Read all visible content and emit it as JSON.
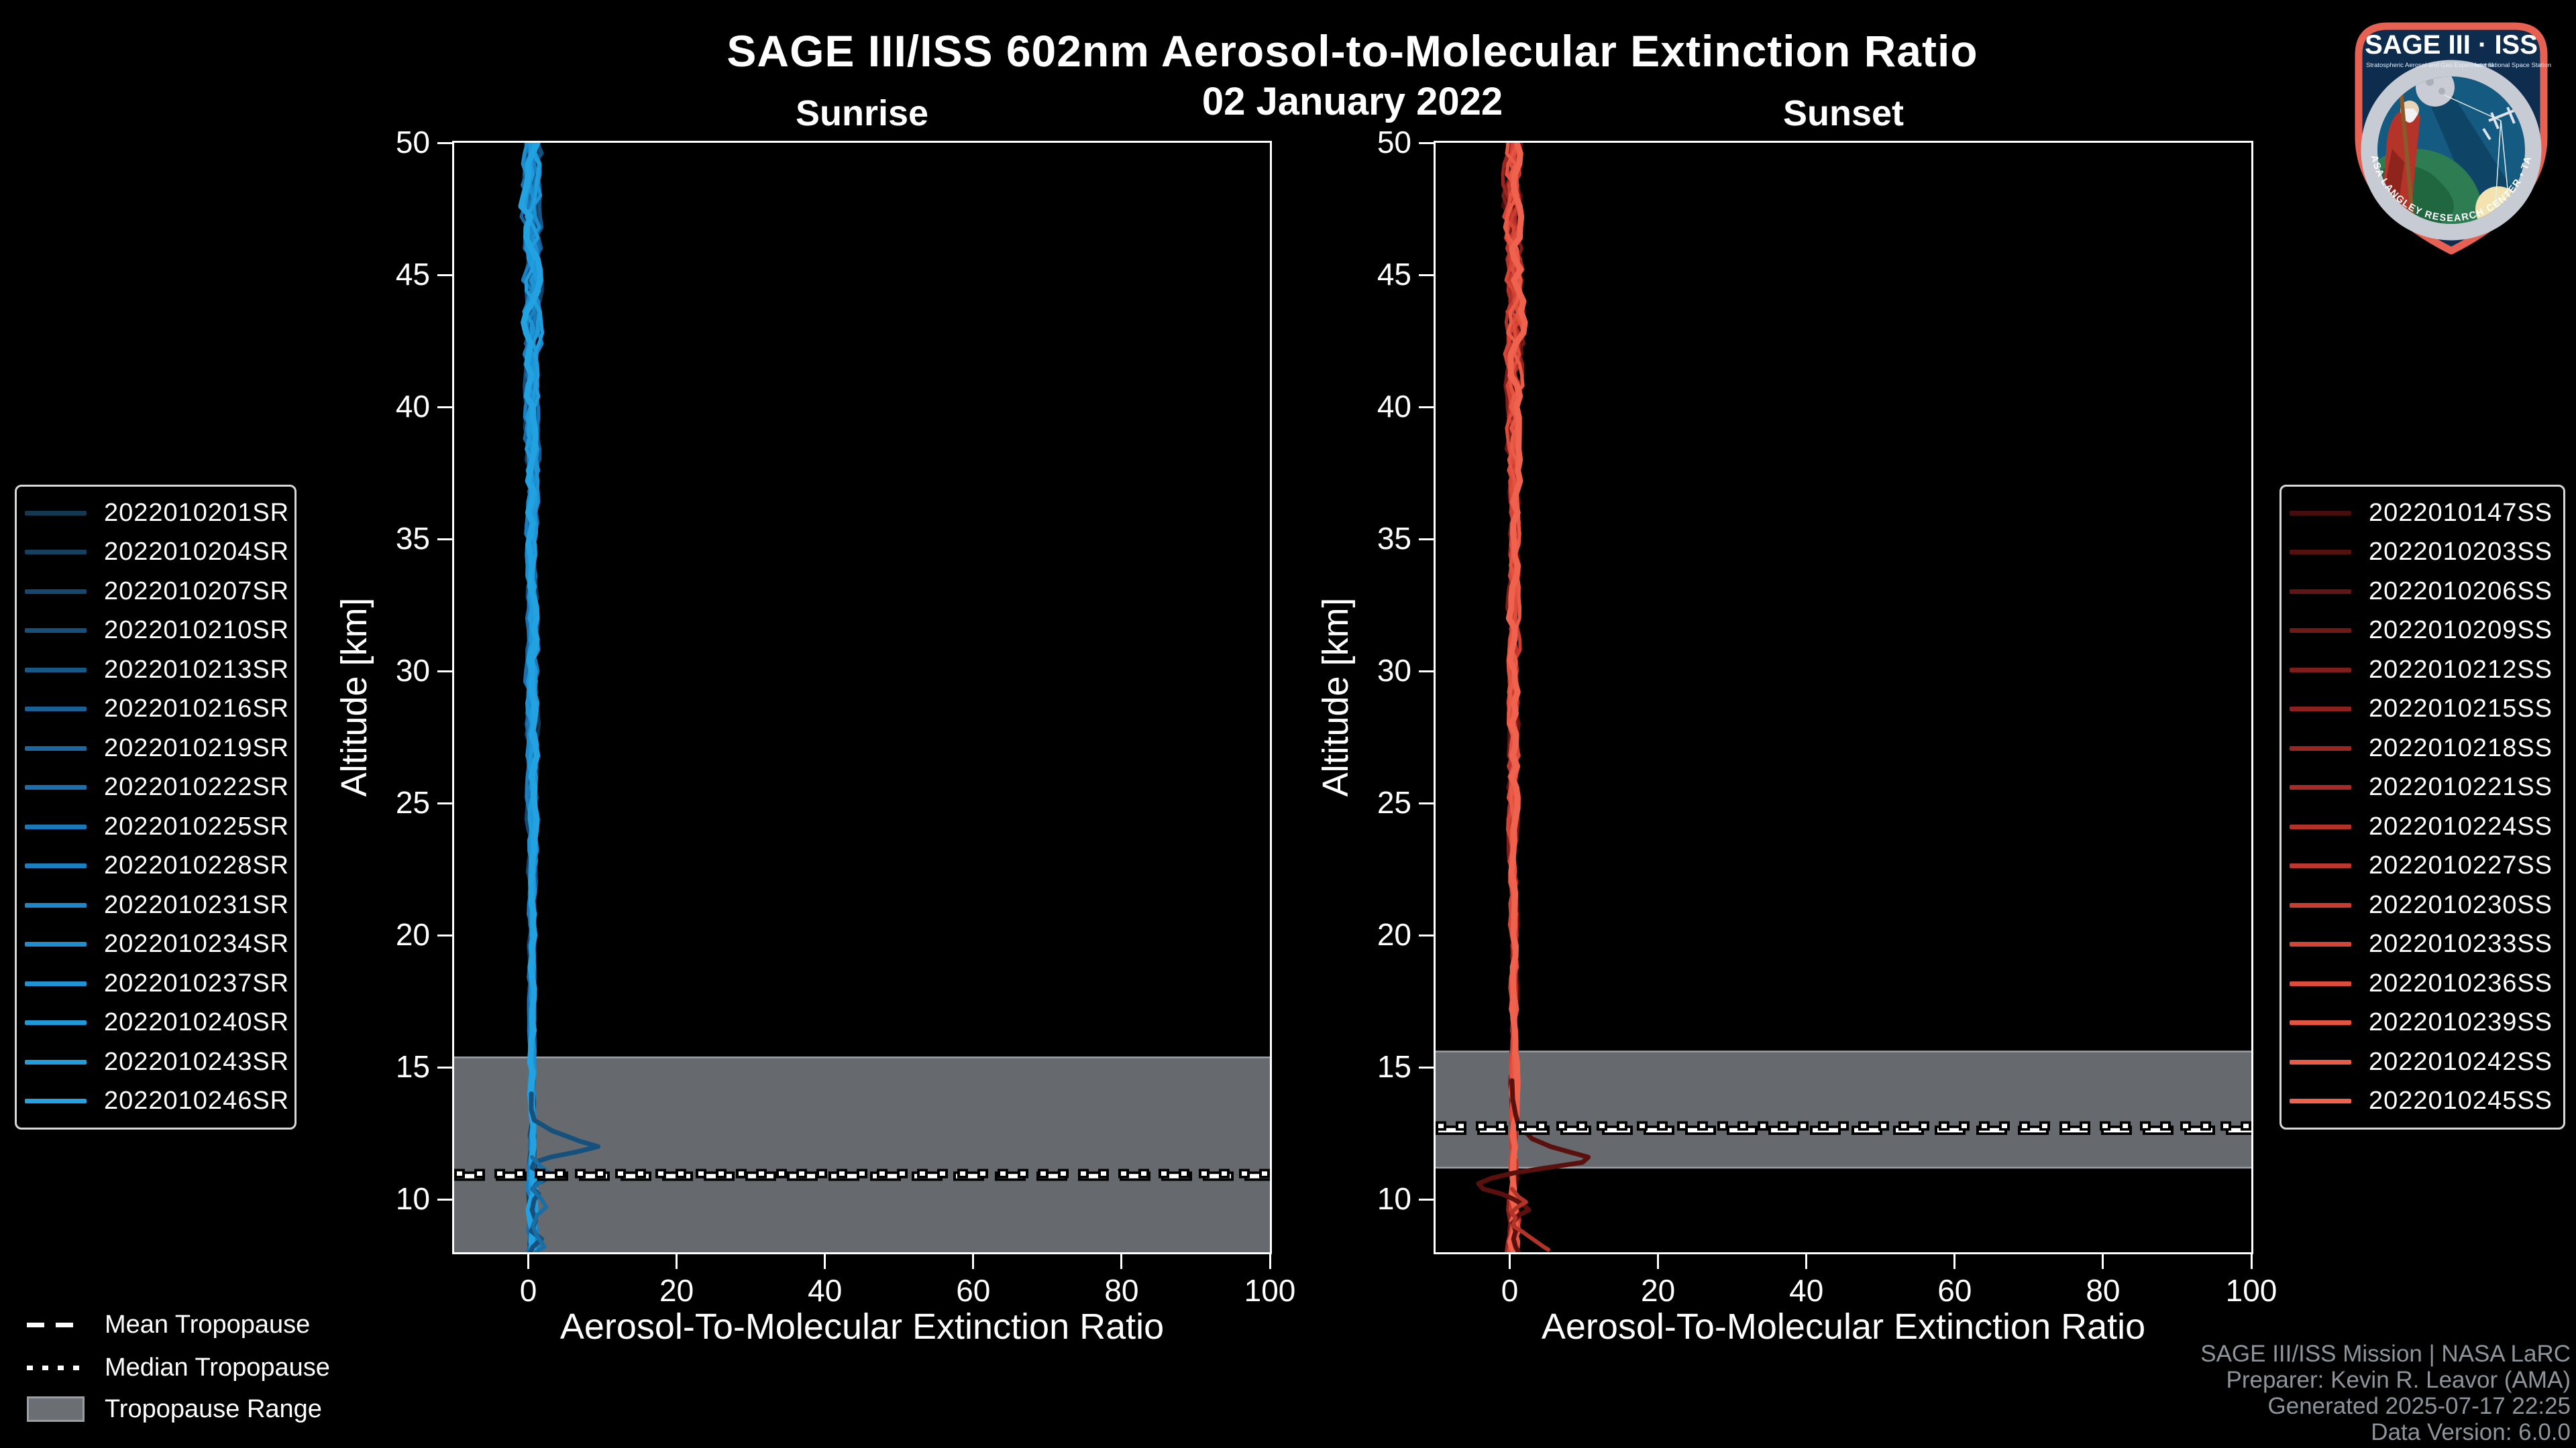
{
  "header": {
    "title": "SAGE III/ISS 602nm Aerosol-to-Molecular Extinction Ratio",
    "date": "02 January 2022"
  },
  "logo": {
    "title": "SAGE III · ISS",
    "sub_left": "Stratospheric Aerosol and Gas Experiment III",
    "sub_right": "International Space Station",
    "ring_text": "BALL • NASA LANGLEY RESEARCH CENTER • TAS-I • ESA",
    "border_color": "#e66152",
    "field_color": "#0d2c4e",
    "ring_color": "#c7cbd3"
  },
  "tropopause_legend": {
    "mean_label": "Mean Tropopause",
    "median_label": "Median Tropopause",
    "range_label": "Tropopause Range"
  },
  "footer": {
    "credits": [
      "SAGE III/ISS Mission | NASA LaRC",
      "Preparer: Kevin R. Leavor (AMA)",
      "Generated 2025-07-17 22:25",
      "Data Version: 6.0.0"
    ],
    "color": "#8d959b"
  },
  "chart_data": [
    {
      "type": "line",
      "title": "Sunrise",
      "xlabel": "Aerosol-To-Molecular Extinction Ratio",
      "ylabel": "Altitude [km]",
      "xlim": [
        -10,
        100
      ],
      "ylim": [
        8,
        50
      ],
      "xticks": [
        0,
        20,
        40,
        60,
        80,
        100
      ],
      "yticks": [
        50,
        45,
        40,
        35,
        30,
        25,
        20,
        15,
        10
      ],
      "grid": false,
      "legend_position": "left-outside",
      "legend_entries": [
        {
          "label": "2022010201SR",
          "color": "#143850"
        },
        {
          "label": "2022010204SR",
          "color": "#154060"
        },
        {
          "label": "2022010207SR",
          "color": "#15486e"
        },
        {
          "label": "2022010210SR",
          "color": "#16507c"
        },
        {
          "label": "2022010213SR",
          "color": "#175889"
        },
        {
          "label": "2022010216SR",
          "color": "#186096"
        },
        {
          "label": "2022010219SR",
          "color": "#1968a2"
        },
        {
          "label": "2022010222SR",
          "color": "#1a70ae"
        },
        {
          "label": "2022010225SR",
          "color": "#1b78b8"
        },
        {
          "label": "2022010228SR",
          "color": "#1b80c1"
        },
        {
          "label": "2022010231SR",
          "color": "#1c87c9"
        },
        {
          "label": "2022010234SR",
          "color": "#1d8ed0"
        },
        {
          "label": "2022010237SR",
          "color": "#1e94d5"
        },
        {
          "label": "2022010240SR",
          "color": "#1f99d9"
        },
        {
          "label": "2022010243SR",
          "color": "#209ddc"
        },
        {
          "label": "2022010246SR",
          "color": "#22a2e0"
        }
      ],
      "tropopause": {
        "mean_km": 10.88,
        "median_km": 10.98,
        "range_top_km": 15.38,
        "range_bottom_km": 8.0,
        "band_color": "#66696d",
        "band_edge_color": "#9aa0a6"
      },
      "bundle": {
        "center": 0.5,
        "step_km": 0.4,
        "seed": 7,
        "count": 16,
        "line_width": 5,
        "top_line_width": 9,
        "amplitude_by_alt": [
          [
            50,
            1.5
          ],
          [
            46,
            1.45
          ],
          [
            43,
            1.5
          ],
          [
            40,
            1.0
          ],
          [
            36,
            0.85
          ],
          [
            32,
            0.8
          ],
          [
            28,
            0.85
          ],
          [
            25,
            0.75
          ],
          [
            22,
            0.55
          ],
          [
            18,
            0.45
          ],
          [
            15,
            0.4
          ],
          [
            12,
            0.45
          ],
          [
            10,
            0.7
          ],
          [
            8,
            0.85
          ]
        ]
      },
      "feature_lines": [
        {
          "name": "tropospheric-spike",
          "color": "#15517c",
          "width": 7,
          "points_alt_value": [
            [
              14.0,
              0.4
            ],
            [
              13.4,
              0.4
            ],
            [
              13.0,
              0.8
            ],
            [
              12.6,
              3.2
            ],
            [
              12.2,
              7.0
            ],
            [
              12.0,
              9.4
            ],
            [
              11.8,
              6.5
            ],
            [
              11.6,
              3.0
            ],
            [
              11.4,
              0.8
            ],
            [
              11.2,
              0.5
            ],
            [
              11.0,
              2.0
            ],
            [
              10.8,
              2.6
            ],
            [
              10.6,
              1.2
            ],
            [
              10.4,
              0.6
            ],
            [
              10.2,
              1.4
            ],
            [
              10.0,
              0.8
            ],
            [
              9.6,
              0.5
            ],
            [
              9.2,
              1.0
            ],
            [
              8.8,
              0.4
            ],
            [
              8.5,
              1.8
            ],
            [
              8.2,
              0.6
            ],
            [
              8.0,
              0.3
            ]
          ]
        },
        {
          "name": "secondary-wiggle",
          "color": "#1b6ea3",
          "width": 6,
          "points_alt_value": [
            [
              11.6,
              0.5
            ],
            [
              11.3,
              1.5
            ],
            [
              11.0,
              2.8
            ],
            [
              10.7,
              1.8
            ],
            [
              10.4,
              0.5
            ],
            [
              10.0,
              1.8
            ],
            [
              9.7,
              2.4
            ],
            [
              9.4,
              1.2
            ],
            [
              9.0,
              0.6
            ],
            [
              8.6,
              1.2
            ],
            [
              8.2,
              2.2
            ],
            [
              8.0,
              1.0
            ]
          ]
        }
      ]
    },
    {
      "type": "line",
      "title": "Sunset",
      "xlabel": "Aerosol-To-Molecular Extinction Ratio",
      "ylabel": "Altitude [km]",
      "xlim": [
        -10,
        100
      ],
      "ylim": [
        8,
        50
      ],
      "xticks": [
        0,
        20,
        40,
        60,
        80,
        100
      ],
      "yticks": [
        50,
        45,
        40,
        35,
        30,
        25,
        20,
        15,
        10
      ],
      "grid": false,
      "legend_position": "right-outside",
      "legend_entries": [
        {
          "label": "2022010147SS",
          "color": "#470d0c"
        },
        {
          "label": "2022010203SS",
          "color": "#551110"
        },
        {
          "label": "2022010206SS",
          "color": "#631513"
        },
        {
          "label": "2022010209SS",
          "color": "#711917"
        },
        {
          "label": "2022010212SS",
          "color": "#7f1d1a"
        },
        {
          "label": "2022010215SS",
          "color": "#8c211e"
        },
        {
          "label": "2022010218SS",
          "color": "#9a2622"
        },
        {
          "label": "2022010221SS",
          "color": "#a82b26"
        },
        {
          "label": "2022010224SS",
          "color": "#b23129"
        },
        {
          "label": "2022010227SS",
          "color": "#bd372d"
        },
        {
          "label": "2022010230SS",
          "color": "#c93d31"
        },
        {
          "label": "2022010233SS",
          "color": "#d44536"
        },
        {
          "label": "2022010236SS",
          "color": "#dd4c3b"
        },
        {
          "label": "2022010239SS",
          "color": "#e45441"
        },
        {
          "label": "2022010242SS",
          "color": "#ea5b47"
        },
        {
          "label": "2022010245SS",
          "color": "#ef624d"
        }
      ],
      "tropopause": {
        "mean_km": 12.62,
        "median_km": 12.78,
        "range_top_km": 15.6,
        "range_bottom_km": 11.2,
        "band_color": "#66696d",
        "band_edge_color": "#9aa0a6"
      },
      "bundle": {
        "center": 0.5,
        "step_km": 0.4,
        "seed": 21,
        "count": 16,
        "line_width": 5,
        "top_line_width": 9,
        "amplitude_by_alt": [
          [
            50,
            1.5
          ],
          [
            46,
            1.4
          ],
          [
            43,
            1.6
          ],
          [
            40,
            1.0
          ],
          [
            35,
            0.85
          ],
          [
            30,
            0.8
          ],
          [
            26,
            0.9
          ],
          [
            22,
            0.6
          ],
          [
            18,
            0.5
          ],
          [
            15,
            0.45
          ],
          [
            12,
            0.5
          ],
          [
            10,
            0.8
          ],
          [
            8,
            1.0
          ]
        ]
      },
      "feature_lines": [
        {
          "name": "tropospheric-spike",
          "color": "#5a110e",
          "width": 7,
          "points_alt_value": [
            [
              14.5,
              0.3
            ],
            [
              13.8,
              0.4
            ],
            [
              13.2,
              0.8
            ],
            [
              12.8,
              1.2
            ],
            [
              12.6,
              2.0
            ],
            [
              12.3,
              3.0
            ],
            [
              12.0,
              5.5
            ],
            [
              11.8,
              8.0
            ],
            [
              11.6,
              10.6
            ],
            [
              11.4,
              9.8
            ],
            [
              11.2,
              5.0
            ],
            [
              11.0,
              0.5
            ],
            [
              10.8,
              -2.5
            ],
            [
              10.6,
              -4.2
            ],
            [
              10.4,
              -3.6
            ],
            [
              10.2,
              -1.0
            ],
            [
              10.0,
              0.6
            ],
            [
              9.8,
              1.8
            ],
            [
              9.6,
              2.6
            ],
            [
              9.4,
              1.2
            ],
            [
              9.1,
              0.4
            ],
            [
              8.8,
              0.8
            ],
            [
              8.5,
              0.5
            ],
            [
              8.2,
              0.8
            ],
            [
              8.0,
              1.2
            ]
          ]
        },
        {
          "name": "secondary-wiggle",
          "color": "#b23428",
          "width": 6,
          "points_alt_value": [
            [
              10.4,
              0.3
            ],
            [
              10.1,
              1.2
            ],
            [
              9.9,
              2.2
            ],
            [
              9.7,
              1.0
            ],
            [
              9.5,
              0.2
            ],
            [
              9.3,
              0.8
            ],
            [
              9.0,
              0.4
            ],
            [
              8.8,
              1.6
            ],
            [
              8.6,
              2.6
            ],
            [
              8.4,
              3.6
            ],
            [
              8.2,
              4.6
            ],
            [
              8.1,
              5.2
            ]
          ]
        }
      ]
    }
  ]
}
